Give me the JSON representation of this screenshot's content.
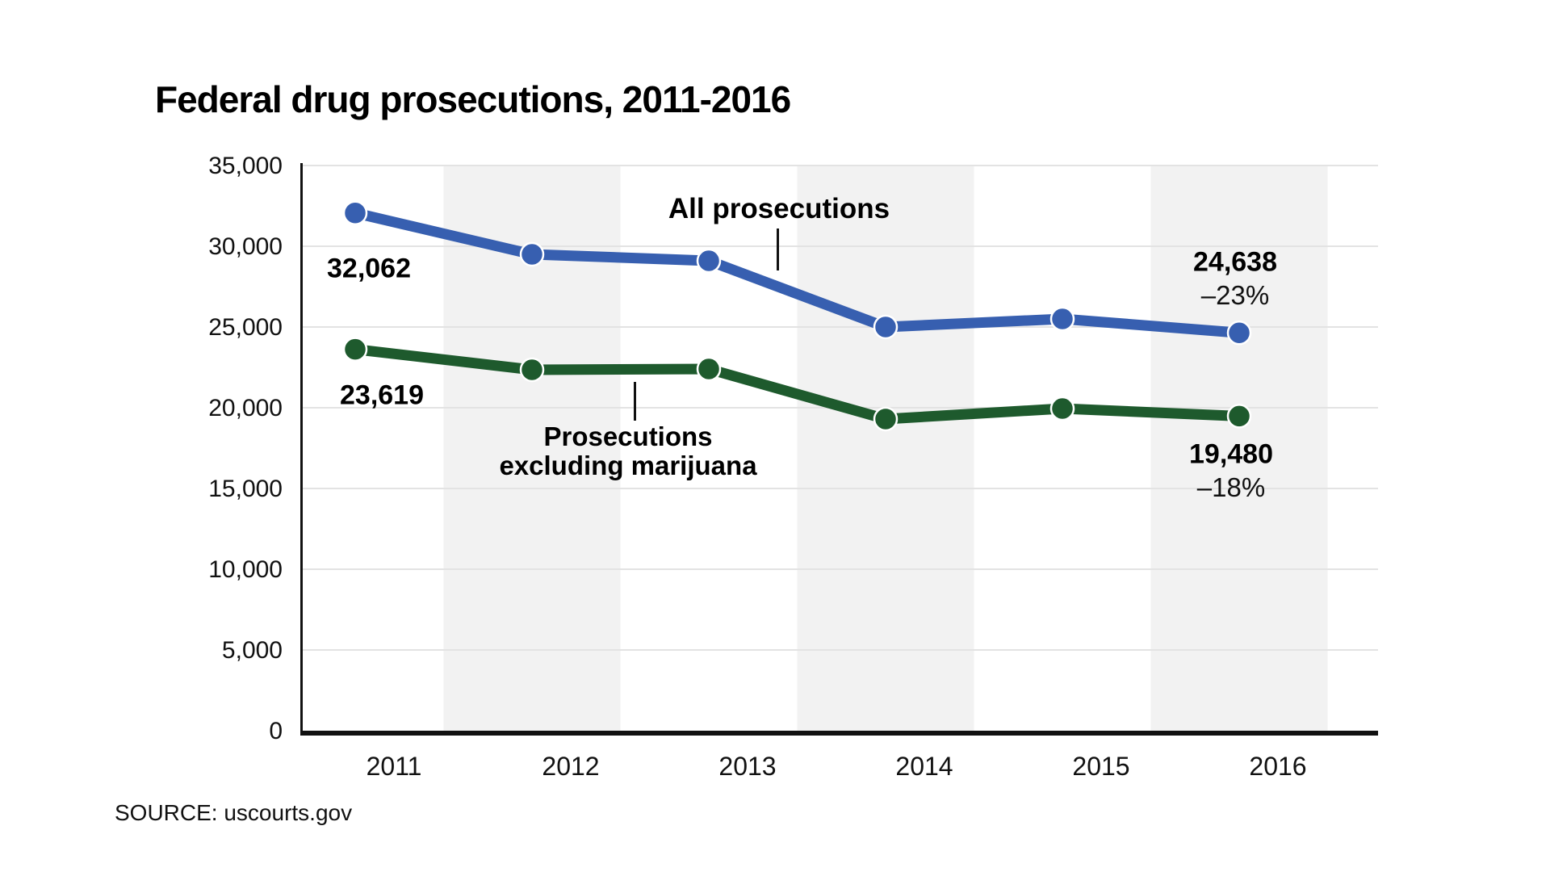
{
  "chart_data": {
    "type": "line",
    "title": "Federal drug prosecutions, 2011-2016",
    "source": "SOURCE: uscourts.gov",
    "categories": [
      "2011",
      "2012",
      "2013",
      "2014",
      "2015",
      "2016"
    ],
    "ylim": [
      0,
      35000
    ],
    "grid": true,
    "legend_position": "inline-annotations",
    "y_ticks": [
      {
        "value": 35000,
        "label": "35,000"
      },
      {
        "value": 30000,
        "label": "30,000"
      },
      {
        "value": 25000,
        "label": "25,000"
      },
      {
        "value": 20000,
        "label": "20,000"
      },
      {
        "value": 15000,
        "label": "15,000"
      },
      {
        "value": 10000,
        "label": "10,000"
      },
      {
        "value": 5000,
        "label": "5,000"
      },
      {
        "value": 0,
        "label": "0"
      }
    ],
    "shaded_years": [
      "2012",
      "2014",
      "2016"
    ],
    "series": [
      {
        "name": "All prosecutions",
        "color": "#375fb0",
        "values": [
          32062,
          29500,
          29100,
          25000,
          25500,
          24638
        ],
        "start_label": "32,062",
        "end_label": "24,638",
        "end_change": "–23%"
      },
      {
        "name": "Prosecutions excluding marijuana",
        "name_lines": [
          "Prosecutions",
          "excluding marijuana"
        ],
        "color": "#1e5a2d",
        "values": [
          23619,
          22350,
          22400,
          19300,
          19950,
          19480
        ],
        "start_label": "23,619",
        "end_label": "19,480",
        "end_change": "–18%"
      }
    ],
    "colors": {
      "band": "#f2f2f2",
      "grid": "#e3e3e3",
      "axis": "#111111",
      "text": "#111111",
      "dot_halo": "#ffffff"
    }
  }
}
